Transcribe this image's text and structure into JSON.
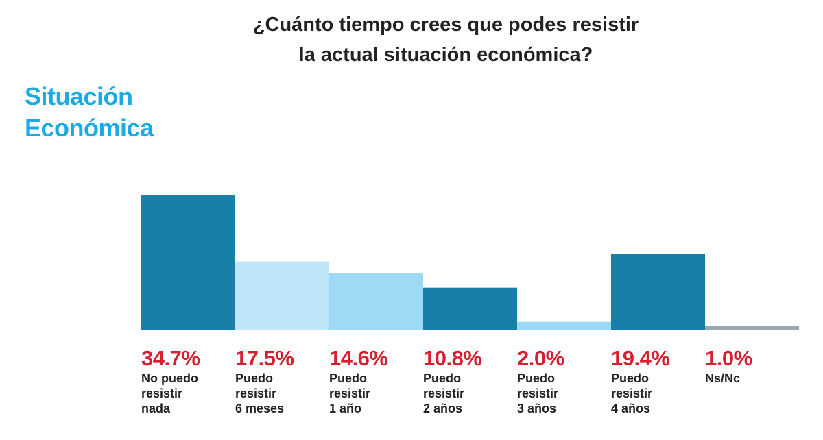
{
  "chart_data": {
    "type": "bar",
    "title": "¿Cuánto tiempo crees que podes resistir\nla actual situación económica?",
    "section_label": "Situación\nEconómica",
    "categories": [
      "No puedo\nresistir\nnada",
      "Puedo\nresistir\n6 meses",
      "Puedo\nresistir\n1 año",
      "Puedo\nresistir\n2 años",
      "Puedo\nresistir\n3 años",
      "Puedo\nresistir\n4 años",
      "Ns/Nc"
    ],
    "values": [
      34.7,
      17.5,
      14.6,
      10.8,
      2.0,
      19.4,
      1.0
    ],
    "value_labels": [
      "34.7%",
      "17.5%",
      "14.6%",
      "10.8%",
      "2.0%",
      "19.4%",
      "1.0%"
    ],
    "colors": [
      "#187fa8",
      "#bfe5f8",
      "#9ed9f5",
      "#187fa8",
      "#9ed9f5",
      "#187fa8",
      "#9aa5ae"
    ],
    "ylim": [
      0,
      35
    ],
    "grid": false,
    "label_color": "#d4202f",
    "section_color": "#1aabe6"
  }
}
